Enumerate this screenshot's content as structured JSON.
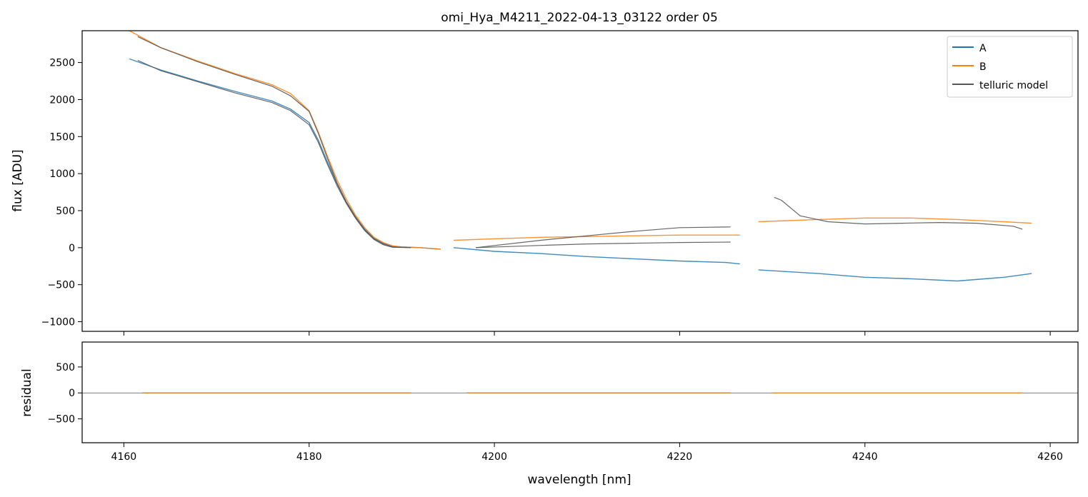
{
  "chart_data": {
    "type": "line",
    "title": "omi_Hya_M4211_2022-04-13_03122  order 05",
    "xlabel": "wavelength [nm]",
    "xlim": [
      4155.5,
      4263
    ],
    "x_ticks": [
      4160,
      4180,
      4200,
      4220,
      4240,
      4260
    ],
    "panels": [
      {
        "name": "flux",
        "ylabel": "flux [ADU]",
        "ylim": [
          -1130,
          2930
        ],
        "y_ticks": [
          -1000,
          -500,
          0,
          500,
          1000,
          1500,
          2000,
          2500
        ],
        "legend": {
          "position": "top-right",
          "entries": [
            "A",
            "B",
            "telluric model"
          ]
        },
        "series": [
          {
            "name": "A",
            "color": "#1f77b4",
            "segments": [
              {
                "x": [
                  4160.6,
                  4164,
                  4168,
                  4172,
                  4176,
                  4178,
                  4180,
                  4181,
                  4182,
                  4183,
                  4184,
                  4185,
                  4186,
                  4187,
                  4188,
                  4189,
                  4190,
                  4192,
                  4194.2
                ],
                "y": [
                  2550,
                  2400,
                  2250,
                  2110,
                  1980,
                  1870,
                  1690,
                  1450,
                  1150,
                  870,
                  620,
                  420,
                  250,
                  130,
                  60,
                  20,
                  10,
                  0,
                  -20
                ]
              },
              {
                "x": [
                  4195.6,
                  4200,
                  4205,
                  4210,
                  4215,
                  4220,
                  4225,
                  4226.5
                ],
                "y": [
                  0,
                  -50,
                  -80,
                  -120,
                  -150,
                  -180,
                  -200,
                  -220
                ]
              },
              {
                "x": [
                  4228.5,
                  4235,
                  4240,
                  4245,
                  4250,
                  4255,
                  4258
                ],
                "y": [
                  -300,
                  -350,
                  -400,
                  -420,
                  -450,
                  -400,
                  -350
                ]
              }
            ]
          },
          {
            "name": "B",
            "color": "#ff7f0e",
            "segments": [
              {
                "x": [
                  4160.6,
                  4164,
                  4168,
                  4172,
                  4176,
                  4178,
                  4180,
                  4181,
                  4182,
                  4183,
                  4184,
                  4185,
                  4186,
                  4187,
                  4188,
                  4189,
                  4190,
                  4192,
                  4194.2
                ],
                "y": [
                  2930,
                  2700,
                  2520,
                  2350,
                  2200,
                  2080,
                  1850,
                  1560,
                  1230,
                  920,
                  660,
                  440,
                  270,
                  140,
                  70,
                  25,
                  10,
                  0,
                  -20
                ]
              },
              {
                "x": [
                  4195.6,
                  4200,
                  4205,
                  4210,
                  4215,
                  4220,
                  4225,
                  4226.5
                ],
                "y": [
                  100,
                  120,
                  140,
                  150,
                  160,
                  170,
                  170,
                  170
                ]
              },
              {
                "x": [
                  4228.5,
                  4235,
                  4240,
                  4245,
                  4250,
                  4255,
                  4258
                ],
                "y": [
                  350,
                  380,
                  400,
                  400,
                  380,
                  350,
                  330
                ]
              }
            ]
          },
          {
            "name": "telluric model",
            "color": "#555555",
            "segments": [
              {
                "x": [
                  4161.5,
                  4164,
                  4168,
                  4172,
                  4176,
                  4178,
                  4180,
                  4181,
                  4182,
                  4183,
                  4184,
                  4185,
                  4186,
                  4187,
                  4188,
                  4189,
                  4191
                ],
                "y": [
                  2850,
                  2700,
                  2510,
                  2340,
                  2180,
                  2050,
                  1840,
                  1540,
                  1200,
                  880,
                  620,
                  410,
                  240,
                  120,
                  50,
                  10,
                  0
                ]
              },
              {
                "x": [
                  4161.5,
                  4164,
                  4168,
                  4172,
                  4176,
                  4178,
                  4180,
                  4181,
                  4182,
                  4183,
                  4184,
                  4185,
                  4186,
                  4187,
                  4188,
                  4189,
                  4191
                ],
                "y": [
                  2530,
                  2390,
                  2240,
                  2090,
                  1960,
                  1850,
                  1660,
                  1420,
                  1120,
                  840,
                  600,
                  400,
                  230,
                  110,
                  40,
                  5,
                  0
                ]
              },
              {
                "x": [
                  4198,
                  4205,
                  4210,
                  4215,
                  4220,
                  4225.5
                ],
                "y": [
                  0,
                  100,
                  160,
                  220,
                  270,
                  280
                ]
              },
              {
                "x": [
                  4198,
                  4205,
                  4210,
                  4215,
                  4220,
                  4225.5
                ],
                "y": [
                  0,
                  30,
                  50,
                  60,
                  70,
                  75
                ]
              },
              {
                "x": [
                  4230.2,
                  4231,
                  4233,
                  4236,
                  4240,
                  4244,
                  4248,
                  4252,
                  4256,
                  4257
                ],
                "y": [
                  680,
                  640,
                  430,
                  350,
                  320,
                  330,
                  340,
                  330,
                  290,
                  250
                ]
              }
            ]
          }
        ]
      },
      {
        "name": "residual",
        "ylabel": "residual",
        "ylim": [
          -960,
          980
        ],
        "y_ticks": [
          -500,
          0,
          500
        ],
        "series": [
          {
            "name": "A",
            "color": "#1f77b4",
            "segments": [
              {
                "x": [
                  4162,
                  4173,
                  4191
                ],
                "y": [
                  0,
                  0,
                  0
                ]
              },
              {
                "x": [
                  4197,
                  4225.5
                ],
                "y": [
                  0,
                  0
                ]
              }
            ]
          },
          {
            "name": "B",
            "color": "#ff7f0e",
            "segments": [
              {
                "x": [
                  4162,
                  4191
                ],
                "y": [
                  0,
                  0
                ]
              },
              {
                "x": [
                  4197,
                  4225.5
                ],
                "y": [
                  0,
                  0
                ]
              },
              {
                "x": [
                  4230,
                  4257
                ],
                "y": [
                  0,
                  0
                ]
              }
            ]
          }
        ]
      }
    ]
  }
}
